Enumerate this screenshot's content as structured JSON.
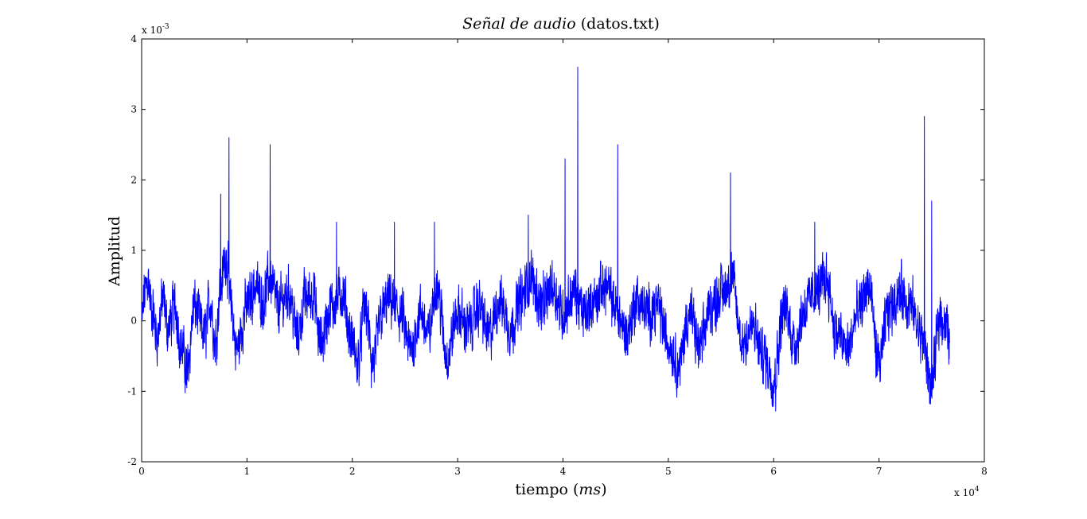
{
  "chart_data": {
    "type": "line",
    "title": "Señal de audio (datos.txt)",
    "title_italic_part": "Señal de audio",
    "title_plain_part": " (datos.txt)",
    "xlabel": "tiempo (ms)",
    "xlabel_plain_part": "tiempo (",
    "xlabel_italic_part": "ms",
    "xlabel_close": ")",
    "ylabel": "Amplitud",
    "xlim": [
      0,
      80000
    ],
    "ylim": [
      -0.002,
      0.004
    ],
    "x_ticks": [
      0,
      1,
      2,
      3,
      4,
      5,
      6,
      7,
      8
    ],
    "y_ticks": [
      -2,
      -1,
      0,
      1,
      2,
      3,
      4
    ],
    "x_multiplier": {
      "base": "x 10",
      "exp": "4"
    },
    "y_multiplier": {
      "base": "x 10",
      "exp": "-3"
    },
    "grid": false,
    "series": [
      {
        "color": "#0000ff",
        "x_start": 0,
        "x_end": 76700,
        "anchors": [
          [
            0,
            0.0
          ],
          [
            300,
            0.0004
          ],
          [
            600,
            0.0006
          ],
          [
            900,
            0.0002
          ],
          [
            1500,
            -0.0002
          ],
          [
            2000,
            0.0003
          ],
          [
            2500,
            -0.0001
          ],
          [
            3200,
            0.0002
          ],
          [
            3800,
            -0.0004
          ],
          [
            4300,
            -0.0007
          ],
          [
            5000,
            0.0002
          ],
          [
            6000,
            -0.0002
          ],
          [
            6500,
            0.0003
          ],
          [
            7000,
            -0.0003
          ],
          [
            7500,
            0.0005
          ],
          [
            8000,
            0.0009
          ],
          [
            8500,
            0.0002
          ],
          [
            9000,
            -0.0004
          ],
          [
            10000,
            0.0002
          ],
          [
            10800,
            0.0005
          ],
          [
            11500,
            0.0003
          ],
          [
            12200,
            0.0006
          ],
          [
            13000,
            0.0002
          ],
          [
            14000,
            0.0004
          ],
          [
            14800,
            -0.0002
          ],
          [
            15500,
            0.0003
          ],
          [
            16200,
            0.0004
          ],
          [
            17000,
            -0.0003
          ],
          [
            18000,
            0.0002
          ],
          [
            19000,
            0.0004
          ],
          [
            20000,
            -0.0003
          ],
          [
            20500,
            -0.0006
          ],
          [
            21200,
            0.0002
          ],
          [
            22000,
            -0.0006
          ],
          [
            22800,
            0.0001
          ],
          [
            23500,
            0.0003
          ],
          [
            24500,
            0.0001
          ],
          [
            25500,
            -0.0004
          ],
          [
            26500,
            0.0001
          ],
          [
            27200,
            -0.0002
          ],
          [
            28000,
            0.0005
          ],
          [
            29000,
            -0.0005
          ],
          [
            30000,
            0.0001
          ],
          [
            31000,
            -0.0001
          ],
          [
            32000,
            0.0002
          ],
          [
            33000,
            -0.0002
          ],
          [
            34000,
            0.0003
          ],
          [
            35000,
            -0.0001
          ],
          [
            36000,
            0.0003
          ],
          [
            37000,
            0.0006
          ],
          [
            38000,
            0.0002
          ],
          [
            39000,
            0.0005
          ],
          [
            40000,
            0.0001
          ],
          [
            41000,
            0.0004
          ],
          [
            42000,
            0.0001
          ],
          [
            43000,
            0.0003
          ],
          [
            44000,
            0.0005
          ],
          [
            45000,
            0.0002
          ],
          [
            46000,
            -0.0002
          ],
          [
            47000,
            0.0003
          ],
          [
            48000,
            0.0001
          ],
          [
            49000,
            0.0002
          ],
          [
            50000,
            -0.0003
          ],
          [
            51000,
            -0.0006
          ],
          [
            52000,
            0.0001
          ],
          [
            53000,
            -0.0004
          ],
          [
            54000,
            0.0002
          ],
          [
            55000,
            0.0004
          ],
          [
            56000,
            0.0006
          ],
          [
            57000,
            -0.0003
          ],
          [
            58000,
            -0.0001
          ],
          [
            59000,
            -0.0005
          ],
          [
            60000,
            -0.0008
          ],
          [
            61000,
            0.0002
          ],
          [
            62000,
            -0.0003
          ],
          [
            63000,
            0.0002
          ],
          [
            64000,
            0.0004
          ],
          [
            65000,
            0.0006
          ],
          [
            66000,
            -0.0002
          ],
          [
            67000,
            -0.0004
          ],
          [
            68000,
            0.0001
          ],
          [
            69000,
            0.0005
          ],
          [
            70000,
            -0.0006
          ],
          [
            71000,
            0.0002
          ],
          [
            72000,
            0.0004
          ],
          [
            73000,
            0.0002
          ],
          [
            74000,
            -0.0002
          ],
          [
            75000,
            -0.0009
          ],
          [
            75800,
            0.0001
          ],
          [
            76700,
            -0.0002
          ]
        ],
        "spikes": [
          [
            7500,
            0.0018
          ],
          [
            8300,
            0.0026
          ],
          [
            12200,
            0.0025
          ],
          [
            18500,
            0.0014
          ],
          [
            24000,
            0.0014
          ],
          [
            27800,
            0.0014
          ],
          [
            36700,
            0.0015
          ],
          [
            40200,
            0.0023
          ],
          [
            41400,
            0.0036
          ],
          [
            45200,
            0.0025
          ],
          [
            55900,
            0.0021
          ],
          [
            63900,
            0.0014
          ],
          [
            74300,
            0.0029
          ],
          [
            75000,
            0.0017
          ]
        ],
        "dips": [
          [
            4300,
            -0.00095
          ],
          [
            21800,
            -0.00095
          ],
          [
            50900,
            -0.00095
          ],
          [
            60200,
            -0.00128
          ],
          [
            74900,
            -0.00118
          ]
        ]
      }
    ]
  }
}
